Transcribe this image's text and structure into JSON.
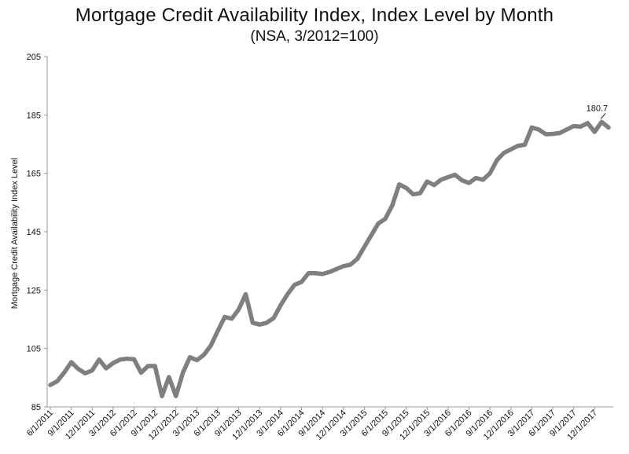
{
  "chart_data": {
    "type": "line",
    "title": "Mortgage Credit Availability Index, Index Level by Month",
    "subtitle": "(NSA, 3/2012=100)",
    "ylabel": "Mortgage Credit Availability Index Level",
    "xlabel": "",
    "ylim": [
      85,
      205
    ],
    "yticks": [
      85,
      105,
      125,
      145,
      165,
      185,
      205
    ],
    "x_tick_labels": [
      "6/1/2011",
      "9/1/2011",
      "12/1/2011",
      "3/1/2012",
      "6/1/2012",
      "9/1/2012",
      "12/1/2012",
      "3/1/2013",
      "6/1/2013",
      "9/1/2013",
      "12/1/2013",
      "3/1/2014",
      "6/1/2014",
      "9/1/2014",
      "12/1/2014",
      "3/1/2015",
      "6/1/2015",
      "9/1/2015",
      "12/1/2015",
      "3/1/2016",
      "6/1/2016",
      "9/1/2016",
      "12/1/2016",
      "3/1/2017",
      "6/1/2017",
      "9/1/2017",
      "12/1/2017"
    ],
    "series_color": "#7f7f7f",
    "grid": false,
    "annotation": {
      "text": "180.7",
      "month_index": 79
    },
    "series": [
      {
        "values": [
          92.5,
          93.8,
          96.8,
          100.3,
          98.0,
          96.5,
          97.5,
          101.2,
          98.2,
          100.0,
          101.2,
          101.5,
          101.3,
          96.7,
          99.0,
          99.0,
          88.7,
          95.2,
          88.7,
          96.7,
          102.0,
          101.0,
          102.8,
          106.0,
          111.0,
          115.8,
          115.2,
          118.4,
          123.6,
          113.8,
          113.2,
          113.8,
          115.4,
          119.8,
          123.6,
          126.8,
          127.8,
          130.8,
          130.8,
          130.5,
          131.2,
          132.2,
          133.2,
          133.7,
          135.7,
          139.8,
          143.8,
          147.8,
          149.4,
          154.0,
          161.2,
          160.0,
          157.8,
          158.2,
          162.2,
          161.0,
          162.8,
          163.7,
          164.5,
          162.6,
          161.7,
          163.4,
          162.8,
          165.0,
          169.5,
          172.0,
          173.2,
          174.4,
          174.8,
          180.7,
          180.0,
          178.4,
          178.5,
          178.8,
          180.0,
          181.2,
          181.0,
          182.2,
          179.2,
          182.6,
          180.7
        ]
      }
    ]
  }
}
